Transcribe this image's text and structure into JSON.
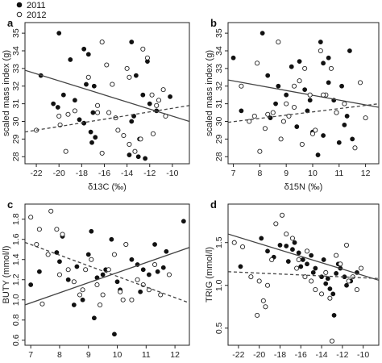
{
  "legend": {
    "entries": [
      {
        "label": "2011",
        "marker": "filled"
      },
      {
        "label": "2012",
        "marker": "open"
      }
    ]
  },
  "colors": {
    "ink": "#222222"
  },
  "chart_data": [
    {
      "panel": "a",
      "type": "scatter",
      "xlabel": "δ13C (‰)",
      "ylabel": "scaled mass index (g)",
      "xlim": [
        -23,
        -8.5
      ],
      "ylim": [
        27.6,
        35.6
      ],
      "xticks": [
        -22,
        -20,
        -18,
        -16,
        -14,
        -12,
        -10
      ],
      "xticklabels": [
        "-22",
        "-20",
        "-18",
        "-16",
        "-14",
        "-12",
        "-10"
      ],
      "yticks": [
        28,
        29,
        30,
        31,
        32,
        33,
        34,
        35
      ],
      "yticklabels": [
        "28",
        "29",
        "30",
        "31",
        "32",
        "33",
        "34",
        "35"
      ],
      "series": [
        {
          "name": "2011",
          "marker": "filled",
          "x": [
            -21.6,
            -20.0,
            -19.6,
            -19.0,
            -20.5,
            -20.1,
            -17.8,
            -17.6,
            -17.0,
            -18.6,
            -18.2,
            -17.8,
            -17.2,
            -16.8,
            -17.4,
            -16.9,
            -13.6,
            -13.2,
            -12.2,
            -12.6,
            -12.0,
            -11.4,
            -13.4,
            -12.9,
            -13.8,
            -13.0,
            -12.4,
            -10.2,
            -13.6,
            -17.1
          ],
          "y": [
            32.6,
            35.0,
            31.5,
            33.5,
            31.0,
            30.8,
            34.1,
            32.1,
            30.5,
            31.2,
            30.1,
            29.9,
            29.4,
            29.1,
            33.8,
            32.0,
            34.5,
            32.6,
            33.4,
            31.5,
            31.0,
            30.6,
            30.3,
            29.0,
            28.1,
            28.0,
            27.9,
            31.4,
            30.0,
            28.8
          ],
          "fit": {
            "x": [
              -23,
              -8.5
            ],
            "y": [
              32.9,
              30.0
            ],
            "style": "solid"
          }
        },
        {
          "name": "2012",
          "marker": "open",
          "x": [
            -22.0,
            -20.0,
            -19.2,
            -19.4,
            -18.6,
            -17.4,
            -16.2,
            -15.8,
            -15.3,
            -15.6,
            -15.0,
            -14.8,
            -14.3,
            -13.8,
            -13.3,
            -12.6,
            -12.2,
            -11.8,
            -11.2,
            -11.4,
            -10.8,
            -10.6,
            -16.6,
            -16.2,
            -14.0,
            -13.8,
            -12.8,
            -19.9,
            -16.6,
            -11.7
          ],
          "y": [
            29.5,
            30.3,
            30.4,
            28.3,
            30.6,
            32.5,
            34.5,
            33.2,
            32.1,
            30.5,
            30.2,
            29.5,
            29.2,
            28.7,
            28.3,
            34.1,
            33.6,
            31.5,
            31.2,
            30.9,
            31.8,
            30.3,
            30.5,
            28.2,
            33.0,
            32.5,
            29.0,
            29.8,
            30.9,
            29.3
          ],
          "fit": {
            "x": [
              -23,
              -8.5
            ],
            "y": [
              29.4,
              30.9
            ],
            "style": "dashed"
          }
        }
      ]
    },
    {
      "panel": "b",
      "type": "scatter",
      "xlabel": "δ15N (‰)",
      "ylabel": "scaled mass index (g)",
      "xlim": [
        6.8,
        12.5
      ],
      "ylim": [
        27.6,
        35.6
      ],
      "xticks": [
        7,
        8,
        9,
        10,
        11,
        12
      ],
      "xticklabels": [
        "7",
        "8",
        "9",
        "10",
        "11",
        "12"
      ],
      "yticks": [
        28,
        29,
        30,
        31,
        32,
        33,
        34,
        35
      ],
      "yticklabels": [
        "28",
        "29",
        "30",
        "31",
        "32",
        "33",
        "34",
        "35"
      ],
      "series": [
        {
          "name": "2011",
          "marker": "filled",
          "x": [
            7.0,
            8.1,
            8.3,
            8.7,
            9.0,
            9.2,
            9.5,
            9.8,
            10.3,
            10.4,
            10.6,
            10.8,
            11.1,
            11.3,
            11.5,
            11.0,
            10.2,
            10.0,
            9.4,
            8.9,
            8.4,
            9.9,
            10.6,
            10.9,
            11.2,
            9.7,
            8.6,
            10.4,
            11.4,
            7.3
          ],
          "y": [
            33.6,
            35.0,
            32.6,
            32.0,
            31.5,
            33.1,
            33.4,
            30.6,
            34.5,
            33.3,
            32.2,
            31.2,
            32.0,
            30.3,
            29.0,
            28.8,
            28.1,
            29.4,
            29.7,
            30.0,
            30.2,
            31.2,
            33.6,
            30.5,
            29.8,
            31.8,
            31.0,
            29.2,
            34.0,
            30.6
          ],
          "fit": {
            "x": [
              6.8,
              12.5
            ],
            "y": [
              32.35,
              30.8
            ],
            "style": "solid"
          }
        },
        {
          "name": "2012",
          "marker": "open",
          "x": [
            7.3,
            7.8,
            7.9,
            8.0,
            8.3,
            8.5,
            8.7,
            8.9,
            9.1,
            9.3,
            9.5,
            9.7,
            9.9,
            10.1,
            10.3,
            10.5,
            10.7,
            10.9,
            11.2,
            11.6,
            12.0,
            8.2,
            8.8,
            9.0,
            9.6,
            10.0,
            10.4,
            7.6,
            11.8,
            9.3
          ],
          "y": [
            32.0,
            30.3,
            33.3,
            28.3,
            30.4,
            30.5,
            34.5,
            30.0,
            30.3,
            32.0,
            32.3,
            33.0,
            31.5,
            29.5,
            34.0,
            31.5,
            33.0,
            30.5,
            31.0,
            28.5,
            30.2,
            29.6,
            29.0,
            31.0,
            28.7,
            29.3,
            31.5,
            30.0,
            32.2,
            30.8
          ],
          "fit": {
            "x": [
              6.8,
              12.5
            ],
            "y": [
              29.95,
              31.0
            ],
            "style": "dashed"
          }
        }
      ]
    },
    {
      "panel": "c",
      "type": "scatter",
      "xlabel": "δ15N (‰)",
      "ylabel": "BUTY (mmol/l)",
      "xlim": [
        6.8,
        12.5
      ],
      "ylim": [
        0.55,
        1.95
      ],
      "xticks": [
        7,
        8,
        9,
        10,
        11,
        12
      ],
      "xticklabels": [
        "7",
        "8",
        "9",
        "10",
        "11",
        "12"
      ],
      "yticks": [
        0.6,
        0.8,
        1.0,
        1.2,
        1.4,
        1.6,
        1.8
      ],
      "yticklabels": [
        "0.6",
        "0.8",
        "1.0",
        "1.2",
        "1.4",
        "1.6",
        "1.8"
      ],
      "series": [
        {
          "name": "2011",
          "marker": "filled",
          "x": [
            7.0,
            7.3,
            7.9,
            8.1,
            8.3,
            8.6,
            8.8,
            9.0,
            9.2,
            9.3,
            9.5,
            9.6,
            9.8,
            10.0,
            10.1,
            10.3,
            10.5,
            10.7,
            10.9,
            11.1,
            11.3,
            11.4,
            11.7,
            12.3,
            8.5,
            9.1,
            9.9,
            10.8,
            8.0,
            11.6
          ],
          "y": [
            1.15,
            1.28,
            1.47,
            1.63,
            1.2,
            1.33,
            1.0,
            1.45,
            0.82,
            1.22,
            1.25,
            1.3,
            1.6,
            1.18,
            1.1,
            1.55,
            1.4,
            1.35,
            1.3,
            1.25,
            1.55,
            1.28,
            1.48,
            1.78,
            0.95,
            1.68,
            0.66,
            1.08,
            1.38,
            1.32
          ],
          "fit": {
            "x": [
              6.8,
              12.5
            ],
            "y": [
              0.95,
              1.52
            ],
            "style": "solid"
          }
        },
        {
          "name": "2012",
          "marker": "open",
          "x": [
            7.0,
            7.2,
            7.4,
            7.7,
            7.9,
            8.1,
            8.3,
            8.5,
            8.7,
            8.9,
            9.1,
            9.3,
            9.5,
            9.7,
            9.9,
            10.1,
            10.3,
            10.5,
            10.7,
            10.9,
            11.1,
            11.3,
            11.5,
            11.8,
            7.6,
            8.0,
            8.8,
            9.4,
            10.2,
            7.3
          ],
          "y": [
            1.82,
            1.55,
            0.96,
            1.88,
            1.7,
            1.65,
            1.3,
            1.18,
            1.05,
            1.3,
            1.4,
            1.15,
            1.05,
            1.3,
            1.45,
            1.08,
            1.55,
            1.0,
            1.2,
            1.15,
            1.1,
            1.35,
            1.05,
            1.25,
            1.45,
            1.25,
            1.1,
            0.95,
            1.0,
            1.7
          ],
          "fit": {
            "x": [
              6.8,
              12.5
            ],
            "y": [
              1.57,
              0.97
            ],
            "style": "dashed"
          }
        }
      ]
    },
    {
      "panel": "d",
      "type": "scatter",
      "xlabel": "δ13C (‰)",
      "ylabel": "TRIG (mmol/l)",
      "xlim": [
        -23,
        -8.5
      ],
      "ylim": [
        0.3,
        1.95
      ],
      "xticks": [
        -22,
        -20,
        -18,
        -16,
        -14,
        -12,
        -10
      ],
      "xticklabels": [
        "-22",
        "-20",
        "-18",
        "-16",
        "-14",
        "-12",
        "-10"
      ],
      "yticks": [
        0.5,
        1.0,
        1.5
      ],
      "yticklabels": [
        "0.5",
        "1.0",
        "1.5"
      ],
      "series": [
        {
          "name": "2011",
          "marker": "filled",
          "x": [
            -21.8,
            -19.8,
            -18.6,
            -18.0,
            -17.4,
            -16.8,
            -16.2,
            -15.8,
            -15.4,
            -14.6,
            -14.0,
            -13.6,
            -13.2,
            -12.8,
            -12.6,
            -12.2,
            -11.8,
            -11.2,
            -10.6,
            -16.6,
            -15.0,
            -13.8,
            -12.4,
            -11.6,
            -17.2,
            -19.2,
            -14.8,
            -13.4,
            -12.9,
            -16.0
          ],
          "y": [
            1.22,
            1.55,
            1.33,
            1.47,
            1.46,
            1.42,
            1.38,
            1.3,
            1.25,
            1.2,
            1.1,
            1.02,
            0.96,
            0.65,
            1.14,
            1.2,
            1.1,
            1.05,
            1.15,
            1.5,
            1.35,
            1.3,
            1.25,
            1.0,
            1.28,
            1.4,
            1.15,
            1.08,
            0.9,
            1.22
          ],
          "fit": {
            "x": [
              -23,
              -8.5
            ],
            "y": [
              1.6,
              1.06
            ],
            "style": "solid"
          }
        },
        {
          "name": "2012",
          "marker": "open",
          "x": [
            -22.4,
            -21.6,
            -20.8,
            -20.2,
            -19.6,
            -19.2,
            -18.4,
            -17.8,
            -17.4,
            -16.8,
            -16.2,
            -15.6,
            -15.0,
            -14.6,
            -14.0,
            -13.6,
            -13.0,
            -12.6,
            -12.2,
            -11.6,
            -11.0,
            -10.6,
            -10.2,
            -20.0,
            -18.8,
            -15.4,
            -13.2,
            -11.4,
            -19.4,
            -16.4
          ],
          "y": [
            1.5,
            1.45,
            1.1,
            0.65,
            0.82,
            1.0,
            1.72,
            1.82,
            1.6,
            1.55,
            1.3,
            1.1,
            1.05,
            0.95,
            0.9,
            1.15,
            0.35,
            1.35,
            1.25,
            1.47,
            1.1,
            0.95,
            1.2,
            1.05,
            1.3,
            1.4,
            0.85,
            1.05,
            0.75,
            1.2
          ],
          "fit": {
            "x": [
              -23,
              -8.5
            ],
            "y": [
              1.16,
              1.08
            ],
            "style": "dashed"
          }
        }
      ]
    }
  ]
}
